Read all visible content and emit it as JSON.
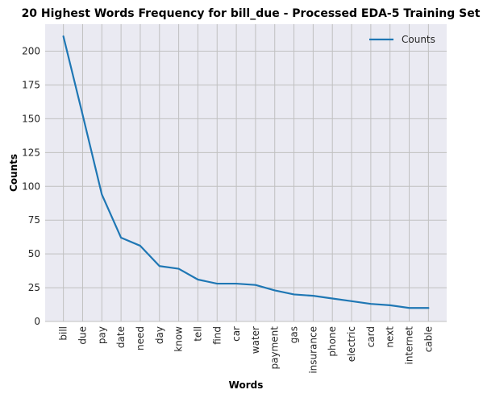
{
  "chart_data": {
    "type": "line",
    "title": "20 Highest Words Frequency for bill_due - Processed EDA-5 Training Set",
    "xlabel": "Words",
    "ylabel": "Counts",
    "categories": [
      "bill",
      "due",
      "pay",
      "date",
      "need",
      "day",
      "know",
      "tell",
      "find",
      "car",
      "water",
      "payment",
      "gas",
      "insurance",
      "phone",
      "electric",
      "card",
      "next",
      "internet",
      "cable"
    ],
    "series": [
      {
        "name": "Counts",
        "color": "#1f77b4",
        "values": [
          211,
          153,
          94,
          62,
          56,
          41,
          39,
          31,
          28,
          28,
          27,
          23,
          20,
          19,
          17,
          15,
          13,
          12,
          10,
          10
        ]
      }
    ],
    "ylim": [
      0,
      220
    ],
    "yticks": [
      0,
      25,
      50,
      75,
      100,
      125,
      150,
      175,
      200
    ],
    "grid": true,
    "legend_position": "top-right",
    "background_color": "#eaeaf2",
    "grid_color": "#c0c0c0"
  }
}
